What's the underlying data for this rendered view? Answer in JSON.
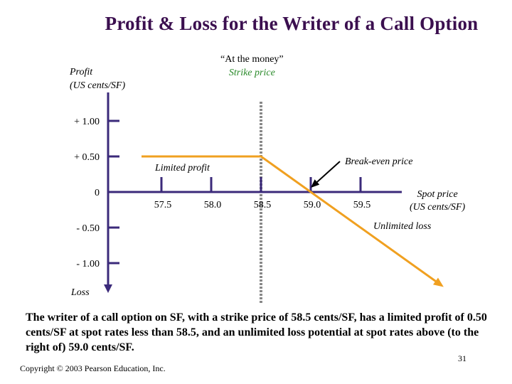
{
  "slide": {
    "title": "Profit & Loss for the Writer of a Call Option",
    "caption": "The writer of a call option on SF, with a strike price of 58.5 cents/SF, has a limited profit of 0.50 cents/SF at spot rates less than 58.5, and an unlimited loss potential at spot rates above (to the right of) 59.0 cents/SF.",
    "copyright": "Copyright © 2003 Pearson Education, Inc.",
    "page_number": "31"
  },
  "chart_data": {
    "type": "line",
    "title": "Profit & Loss for the Writer of a Call Option",
    "ylabel_line1": "Profit",
    "ylabel_line2": "(US cents/SF)",
    "ylabel_bottom": "Loss",
    "xlabel_line1": "Spot price",
    "xlabel_line2": "(US cents/SF)",
    "x_ticks": [
      57.5,
      58.0,
      58.5,
      59.0,
      59.5
    ],
    "x_tick_labels": [
      "57.5",
      "58.0",
      "58.5",
      "59.0",
      "59.5"
    ],
    "y_ticks": [
      1.0,
      0.5,
      0,
      -0.5,
      -1.0
    ],
    "y_tick_labels": [
      "+ 1.00",
      "+ 0.50",
      "0",
      "- 0.50",
      "- 1.00"
    ],
    "xlim": [
      57.0,
      60.0
    ],
    "ylim": [
      -1.5,
      1.5
    ],
    "strike_price": 58.5,
    "break_even_price": 59.0,
    "series": [
      {
        "x": [
          57.3,
          58.5,
          60.3
        ],
        "y": [
          0.5,
          0.5,
          -1.3
        ],
        "color": "#f0a020"
      }
    ],
    "annotations": {
      "strike_line1": "“At the money”",
      "strike_line2": "Strike price",
      "limited_profit": "Limited profit",
      "break_even": "Break-even price",
      "unlimited_loss": "Unlimited loss"
    },
    "colors": {
      "payoff": "#f0a020",
      "axis": "#3b2a7a",
      "strike_label": "#2a8a2a",
      "strike_line": "#888888"
    }
  }
}
